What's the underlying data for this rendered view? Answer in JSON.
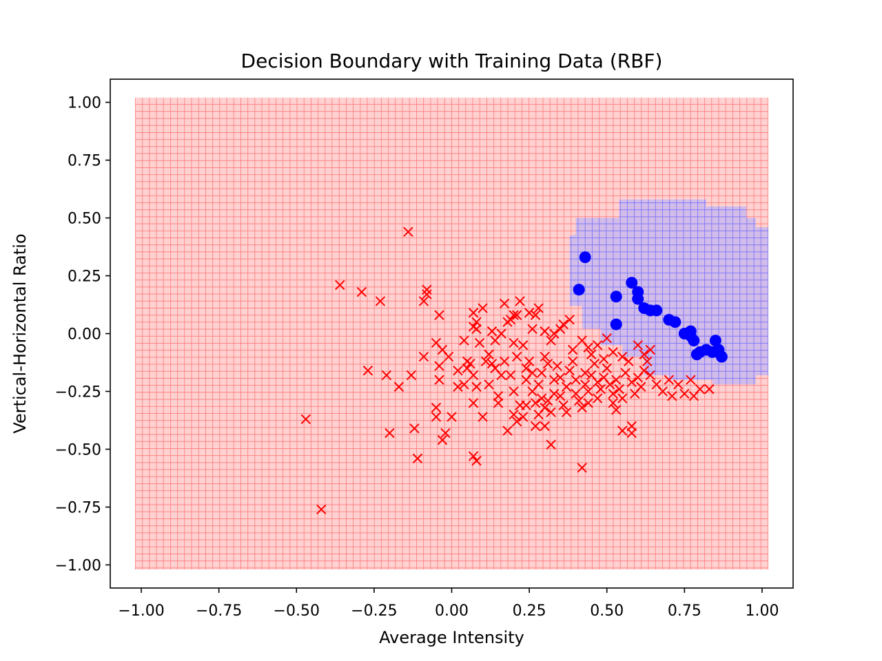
{
  "chart_data": {
    "type": "scatter",
    "title": "Decision Boundary with Training Data (RBF)",
    "xlabel": "Average Intensity",
    "ylabel": "Vertical-Horizontal Ratio",
    "xlim": [
      -1.1,
      1.1
    ],
    "ylim": [
      -1.1,
      1.1
    ],
    "grid": false,
    "legend": "none",
    "x_ticks": [
      -1.0,
      -0.75,
      -0.5,
      -0.25,
      0.0,
      0.25,
      0.5,
      0.75,
      1.0
    ],
    "x_tick_labels": [
      "−1.00",
      "−0.75",
      "−0.50",
      "−0.25",
      "0.00",
      "0.25",
      "0.50",
      "0.75",
      "1.00"
    ],
    "y_ticks": [
      1.0,
      0.75,
      0.5,
      0.25,
      0.0,
      -0.25,
      -0.5,
      -0.75,
      -1.0
    ],
    "y_tick_labels": [
      "1.00",
      "0.75",
      "0.50",
      "0.25",
      "0.00",
      "−0.25",
      "−0.50",
      "−0.75",
      "−1.00"
    ],
    "colors": {
      "negative_region": "#ffaaaa",
      "negative_grid": "#ff7777",
      "positive_region": "#aaaaff",
      "positive_grid": "#7777ff",
      "negative_marker": "#ff0000",
      "positive_marker": "#0000ff"
    },
    "decision_region": {
      "extent": [
        -1.02,
        1.02,
        -1.02,
        1.02
      ],
      "positive_region_polygon": [
        [
          0.38,
          0.42
        ],
        [
          0.4,
          0.43
        ],
        [
          0.4,
          0.5
        ],
        [
          0.54,
          0.5
        ],
        [
          0.54,
          0.58
        ],
        [
          0.82,
          0.58
        ],
        [
          0.82,
          0.55
        ],
        [
          0.95,
          0.55
        ],
        [
          0.95,
          0.5
        ],
        [
          0.98,
          0.5
        ],
        [
          0.98,
          0.46
        ],
        [
          1.02,
          0.46
        ],
        [
          1.02,
          -0.18
        ],
        [
          0.98,
          -0.18
        ],
        [
          0.98,
          -0.22
        ],
        [
          0.84,
          -0.22
        ],
        [
          0.84,
          -0.2
        ],
        [
          0.7,
          -0.2
        ],
        [
          0.7,
          -0.18
        ],
        [
          0.62,
          -0.18
        ],
        [
          0.62,
          -0.1
        ],
        [
          0.55,
          -0.1
        ],
        [
          0.55,
          -0.05
        ],
        [
          0.48,
          -0.05
        ],
        [
          0.48,
          0.02
        ],
        [
          0.42,
          0.02
        ],
        [
          0.42,
          0.12
        ],
        [
          0.38,
          0.12
        ]
      ]
    },
    "series": [
      {
        "marker": "x",
        "color": "#ff0000",
        "points": [
          [
            -0.14,
            0.44
          ],
          [
            -0.36,
            0.21
          ],
          [
            -0.29,
            0.18
          ],
          [
            -0.23,
            0.14
          ],
          [
            -0.08,
            0.19
          ],
          [
            -0.08,
            0.17
          ],
          [
            -0.09,
            0.14
          ],
          [
            -0.04,
            0.08
          ],
          [
            -0.27,
            -0.16
          ],
          [
            -0.21,
            -0.18
          ],
          [
            -0.17,
            -0.23
          ],
          [
            -0.13,
            -0.18
          ],
          [
            -0.09,
            -0.1
          ],
          [
            -0.05,
            -0.04
          ],
          [
            -0.03,
            -0.07
          ],
          [
            -0.01,
            -0.1
          ],
          [
            -0.04,
            -0.14
          ],
          [
            -0.04,
            -0.2
          ],
          [
            -0.05,
            -0.32
          ],
          [
            -0.05,
            -0.36
          ],
          [
            -0.02,
            -0.43
          ],
          [
            -0.03,
            -0.46
          ],
          [
            -0.12,
            -0.41
          ],
          [
            -0.2,
            -0.43
          ],
          [
            -0.11,
            -0.54
          ],
          [
            -0.47,
            -0.37
          ],
          [
            -0.42,
            -0.76
          ],
          [
            0.0,
            -0.36
          ],
          [
            0.02,
            -0.16
          ],
          [
            0.02,
            -0.23
          ],
          [
            0.04,
            -0.22
          ],
          [
            0.05,
            -0.15
          ],
          [
            0.05,
            -0.12
          ],
          [
            0.06,
            -0.13
          ],
          [
            0.07,
            -0.18
          ],
          [
            0.07,
            -0.3
          ],
          [
            0.08,
            -0.23
          ],
          [
            0.07,
            -0.53
          ],
          [
            0.08,
            -0.55
          ],
          [
            0.04,
            -0.03
          ],
          [
            0.07,
            0.03
          ],
          [
            0.08,
            0.05
          ],
          [
            0.08,
            0.02
          ],
          [
            0.07,
            0.09
          ],
          [
            0.1,
            0.11
          ],
          [
            0.09,
            -0.04
          ],
          [
            0.11,
            -0.12
          ],
          [
            0.12,
            -0.22
          ],
          [
            0.1,
            -0.36
          ],
          [
            0.13,
            -0.13
          ],
          [
            0.14,
            -0.15
          ],
          [
            0.15,
            -0.27
          ],
          [
            0.15,
            -0.3
          ],
          [
            0.16,
            -0.18
          ],
          [
            0.17,
            -0.12
          ],
          [
            0.13,
            0.01
          ],
          [
            0.14,
            -0.03
          ],
          [
            0.16,
            0.0
          ],
          [
            0.17,
            0.13
          ],
          [
            0.18,
            0.05
          ],
          [
            0.19,
            0.06
          ],
          [
            0.2,
            0.08
          ],
          [
            0.21,
            0.08
          ],
          [
            0.2,
            -0.04
          ],
          [
            0.21,
            -0.1
          ],
          [
            0.19,
            -0.18
          ],
          [
            0.2,
            -0.25
          ],
          [
            0.2,
            -0.35
          ],
          [
            0.21,
            -0.38
          ],
          [
            0.22,
            -0.31
          ],
          [
            0.23,
            -0.36
          ],
          [
            0.24,
            -0.2
          ],
          [
            0.24,
            -0.15
          ],
          [
            0.25,
            -0.12
          ],
          [
            0.26,
            -0.17
          ],
          [
            0.26,
            -0.25
          ],
          [
            0.27,
            -0.3
          ],
          [
            0.28,
            -0.35
          ],
          [
            0.27,
            -0.4
          ],
          [
            0.28,
            -0.22
          ],
          [
            0.29,
            -0.17
          ],
          [
            0.3,
            -0.1
          ],
          [
            0.3,
            -0.32
          ],
          [
            0.31,
            -0.29
          ],
          [
            0.32,
            -0.34
          ],
          [
            0.33,
            -0.26
          ],
          [
            0.33,
            -0.2
          ],
          [
            0.34,
            -0.14
          ],
          [
            0.35,
            -0.19
          ],
          [
            0.35,
            -0.27
          ],
          [
            0.36,
            -0.31
          ],
          [
            0.37,
            -0.23
          ],
          [
            0.38,
            -0.16
          ],
          [
            0.39,
            -0.12
          ],
          [
            0.4,
            -0.2
          ],
          [
            0.4,
            -0.26
          ],
          [
            0.41,
            -0.29
          ],
          [
            0.42,
            -0.32
          ],
          [
            0.43,
            -0.22
          ],
          [
            0.43,
            -0.17
          ],
          [
            0.44,
            -0.25
          ],
          [
            0.45,
            -0.18
          ],
          [
            0.46,
            -0.13
          ],
          [
            0.47,
            -0.21
          ],
          [
            0.47,
            -0.28
          ],
          [
            0.48,
            -0.24
          ],
          [
            0.49,
            -0.19
          ],
          [
            0.5,
            -0.15
          ],
          [
            0.51,
            -0.22
          ],
          [
            0.52,
            -0.26
          ],
          [
            0.53,
            -0.2
          ],
          [
            0.54,
            -0.24
          ],
          [
            0.55,
            -0.28
          ],
          [
            0.56,
            -0.17
          ],
          [
            0.57,
            -0.12
          ],
          [
            0.58,
            -0.21
          ],
          [
            0.59,
            -0.26
          ],
          [
            0.6,
            -0.19
          ],
          [
            0.61,
            -0.23
          ],
          [
            0.62,
            -0.16
          ],
          [
            0.63,
            -0.12
          ],
          [
            0.64,
            -0.07
          ],
          [
            0.64,
            -0.18
          ],
          [
            0.66,
            -0.22
          ],
          [
            0.68,
            -0.25
          ],
          [
            0.7,
            -0.2
          ],
          [
            0.71,
            -0.27
          ],
          [
            0.73,
            -0.22
          ],
          [
            0.75,
            -0.26
          ],
          [
            0.77,
            -0.2
          ],
          [
            0.78,
            -0.27
          ],
          [
            0.8,
            -0.24
          ],
          [
            0.83,
            -0.24
          ],
          [
            0.62,
            -0.09
          ],
          [
            0.58,
            -0.4
          ],
          [
            0.58,
            -0.43
          ],
          [
            0.53,
            -0.33
          ],
          [
            0.55,
            -0.42
          ],
          [
            0.42,
            -0.58
          ],
          [
            0.32,
            -0.48
          ],
          [
            0.3,
            -0.4
          ],
          [
            0.22,
            0.14
          ],
          [
            0.25,
            0.09
          ],
          [
            0.26,
            0.02
          ],
          [
            0.27,
            0.08
          ],
          [
            0.28,
            0.11
          ],
          [
            0.3,
            0.01
          ],
          [
            0.32,
            -0.03
          ],
          [
            0.33,
            0.0
          ],
          [
            0.35,
            0.02
          ],
          [
            0.36,
            0.04
          ],
          [
            0.38,
            0.06
          ],
          [
            0.42,
            -0.03
          ],
          [
            0.44,
            -0.06
          ],
          [
            0.47,
            -0.05
          ],
          [
            0.5,
            -0.02
          ],
          [
            0.52,
            -0.08
          ],
          [
            0.55,
            -0.1
          ],
          [
            0.6,
            -0.05
          ],
          [
            0.18,
            -0.42
          ],
          [
            0.24,
            -0.31
          ],
          [
            0.29,
            -0.28
          ],
          [
            0.37,
            -0.34
          ],
          [
            0.44,
            -0.3
          ],
          [
            0.52,
            -0.3
          ],
          [
            0.12,
            -0.09
          ],
          [
            0.23,
            -0.05
          ],
          [
            0.31,
            -0.13
          ],
          [
            0.39,
            -0.07
          ],
          [
            0.45,
            -0.09
          ],
          [
            0.49,
            -0.11
          ]
        ]
      },
      {
        "marker": "o",
        "color": "#0000ff",
        "points": [
          [
            0.43,
            0.33
          ],
          [
            0.41,
            0.19
          ],
          [
            0.53,
            0.16
          ],
          [
            0.58,
            0.22
          ],
          [
            0.6,
            0.18
          ],
          [
            0.6,
            0.15
          ],
          [
            0.62,
            0.11
          ],
          [
            0.64,
            0.1
          ],
          [
            0.66,
            0.1
          ],
          [
            0.7,
            0.06
          ],
          [
            0.72,
            0.05
          ],
          [
            0.53,
            0.04
          ],
          [
            0.75,
            0.0
          ],
          [
            0.77,
            0.01
          ],
          [
            0.77,
            -0.01
          ],
          [
            0.78,
            -0.03
          ],
          [
            0.8,
            -0.08
          ],
          [
            0.82,
            -0.07
          ],
          [
            0.84,
            -0.08
          ],
          [
            0.85,
            -0.03
          ],
          [
            0.86,
            -0.07
          ],
          [
            0.87,
            -0.1
          ],
          [
            0.79,
            -0.09
          ]
        ]
      }
    ]
  }
}
